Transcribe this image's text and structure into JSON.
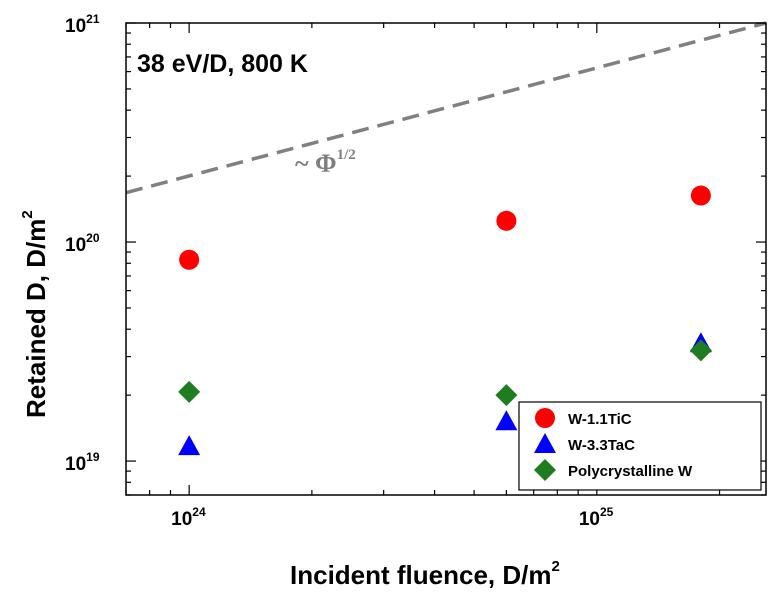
{
  "chart_data": {
    "type": "scatter",
    "annotation": "38 eV/D, 800 K",
    "xlabel": "Incident fluence, D/m",
    "xlabel_sup": "2",
    "ylabel": "Retained D, D/m",
    "ylabel_sup": "2",
    "x_scale": "log",
    "y_scale": "log",
    "xlim": [
      7e+23,
      2.6e+25
    ],
    "ylim": [
      7e+18,
      1e+21
    ],
    "x_ticks": [
      {
        "base": "10",
        "exp": "24",
        "value": 1e+24
      },
      {
        "base": "10",
        "exp": "25",
        "value": 1e+25
      }
    ],
    "y_ticks": [
      {
        "base": "10",
        "exp": "19",
        "value": 1e+19
      },
      {
        "base": "10",
        "exp": "20",
        "value": 1e+20
      },
      {
        "base": "10",
        "exp": "21",
        "value": 1e+21
      }
    ],
    "grid": false,
    "legend_position": "bottom-right",
    "series": [
      {
        "name": "W-1.1TiC",
        "marker": "circle",
        "color": "#ff0000",
        "x": [
          1e+24,
          6e+24,
          1.8e+25
        ],
        "y": [
          8.3e+19,
          1.25e+20,
          1.63e+20
        ]
      },
      {
        "name": "W-3.3TaC",
        "marker": "triangle",
        "color": "#0000ff",
        "x": [
          1e+24,
          6e+24,
          1.8e+25
        ],
        "y": [
          1.17e+19,
          1.52e+19,
          3.45e+19
        ]
      },
      {
        "name": "Polycrystalline W",
        "marker": "diamond",
        "color": "#1e7d1e",
        "x": [
          1e+24,
          6e+24,
          1.8e+25
        ],
        "y": [
          2.07e+19,
          2e+19,
          3.2e+19
        ]
      }
    ],
    "trend_line": {
      "label_prefix": "~ Φ",
      "label_exp": "1/2",
      "color": "#808080",
      "style": "dashed",
      "x": [
        7e+23,
        2.6e+25
      ],
      "y": [
        1.68e+20,
        1e+21
      ]
    }
  }
}
